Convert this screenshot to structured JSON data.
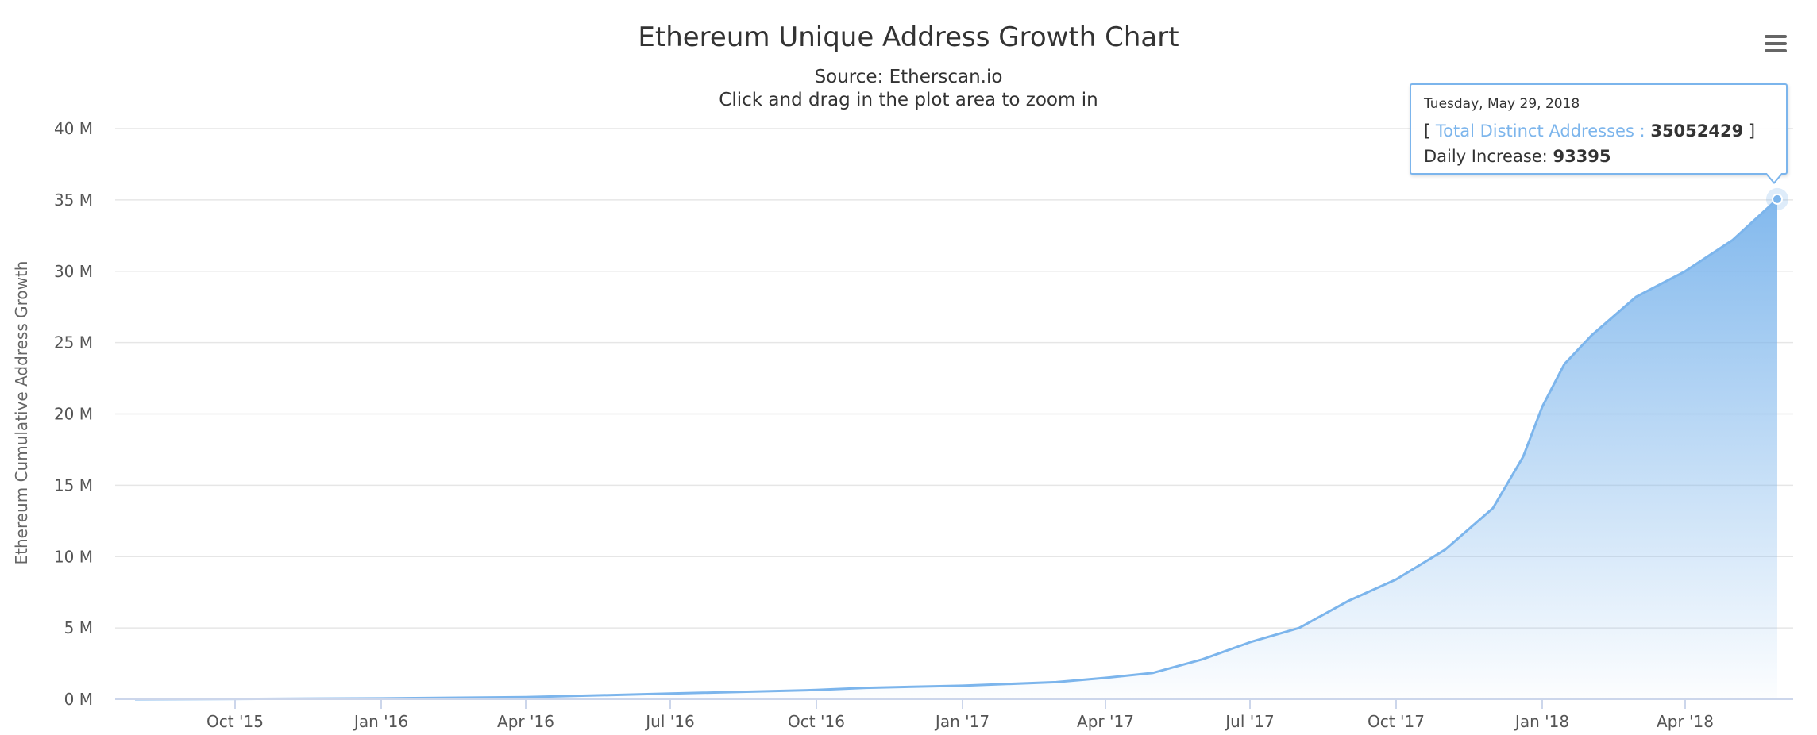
{
  "chart_data": {
    "type": "area",
    "title": "Ethereum Unique Address Growth Chart",
    "subtitles": [
      "Source: Etherscan.io",
      "Click and drag in the plot area to zoom in"
    ],
    "ylabel": "Ethereum Cumulative Address Growth",
    "xlabel": "",
    "ylim": [
      0,
      40000000
    ],
    "yticks": [
      {
        "value": 0,
        "label": "0 M"
      },
      {
        "value": 5000000,
        "label": "5 M"
      },
      {
        "value": 10000000,
        "label": "10 M"
      },
      {
        "value": 15000000,
        "label": "15 M"
      },
      {
        "value": 20000000,
        "label": "20 M"
      },
      {
        "value": 25000000,
        "label": "25 M"
      },
      {
        "value": 30000000,
        "label": "30 M"
      },
      {
        "value": 35000000,
        "label": "35 M"
      },
      {
        "value": 40000000,
        "label": "40 M"
      }
    ],
    "xlim": [
      "2015-07-30",
      "2018-05-29"
    ],
    "xticks": [
      {
        "date": "2015-10-01",
        "label": "Oct '15"
      },
      {
        "date": "2016-01-01",
        "label": "Jan '16"
      },
      {
        "date": "2016-04-01",
        "label": "Apr '16"
      },
      {
        "date": "2016-07-01",
        "label": "Jul '16"
      },
      {
        "date": "2016-10-01",
        "label": "Oct '16"
      },
      {
        "date": "2017-01-01",
        "label": "Jan '17"
      },
      {
        "date": "2017-04-01",
        "label": "Apr '17"
      },
      {
        "date": "2017-07-01",
        "label": "Jul '17"
      },
      {
        "date": "2017-10-01",
        "label": "Oct '17"
      },
      {
        "date": "2018-01-01",
        "label": "Jan '18"
      },
      {
        "date": "2018-04-01",
        "label": "Apr '18"
      }
    ],
    "grid": true,
    "series": [
      {
        "name": "Total Distinct Addresses",
        "color": "#7cb5ec",
        "points": [
          {
            "date": "2015-07-30",
            "value": 0
          },
          {
            "date": "2015-10-01",
            "value": 20000
          },
          {
            "date": "2016-01-01",
            "value": 60000
          },
          {
            "date": "2016-04-01",
            "value": 150000
          },
          {
            "date": "2016-07-01",
            "value": 400000
          },
          {
            "date": "2016-10-01",
            "value": 650000
          },
          {
            "date": "2016-11-01",
            "value": 800000
          },
          {
            "date": "2017-01-01",
            "value": 950000
          },
          {
            "date": "2017-03-01",
            "value": 1200000
          },
          {
            "date": "2017-04-01",
            "value": 1500000
          },
          {
            "date": "2017-05-01",
            "value": 1850000
          },
          {
            "date": "2017-06-01",
            "value": 2800000
          },
          {
            "date": "2017-07-01",
            "value": 4000000
          },
          {
            "date": "2017-08-01",
            "value": 5000000
          },
          {
            "date": "2017-09-01",
            "value": 6900000
          },
          {
            "date": "2017-10-01",
            "value": 8400000
          },
          {
            "date": "2017-11-01",
            "value": 10500000
          },
          {
            "date": "2017-12-01",
            "value": 13400000
          },
          {
            "date": "2017-12-20",
            "value": 17000000
          },
          {
            "date": "2018-01-01",
            "value": 20500000
          },
          {
            "date": "2018-01-15",
            "value": 23500000
          },
          {
            "date": "2018-02-01",
            "value": 25500000
          },
          {
            "date": "2018-03-01",
            "value": 28200000
          },
          {
            "date": "2018-04-01",
            "value": 30000000
          },
          {
            "date": "2018-05-01",
            "value": 32200000
          },
          {
            "date": "2018-05-29",
            "value": 35052429
          }
        ]
      }
    ],
    "highlight": {
      "date": "2018-05-29",
      "value": 35052429
    }
  },
  "tooltip": {
    "date": "Tuesday, May 29, 2018",
    "open_bracket": "[",
    "series_label": "Total Distinct Addresses :",
    "value": "35052429",
    "close_bracket": "]",
    "increase_label": "Daily Increase:",
    "increase_value": "93395"
  },
  "menu": {
    "icon": "hamburger-menu-icon"
  }
}
